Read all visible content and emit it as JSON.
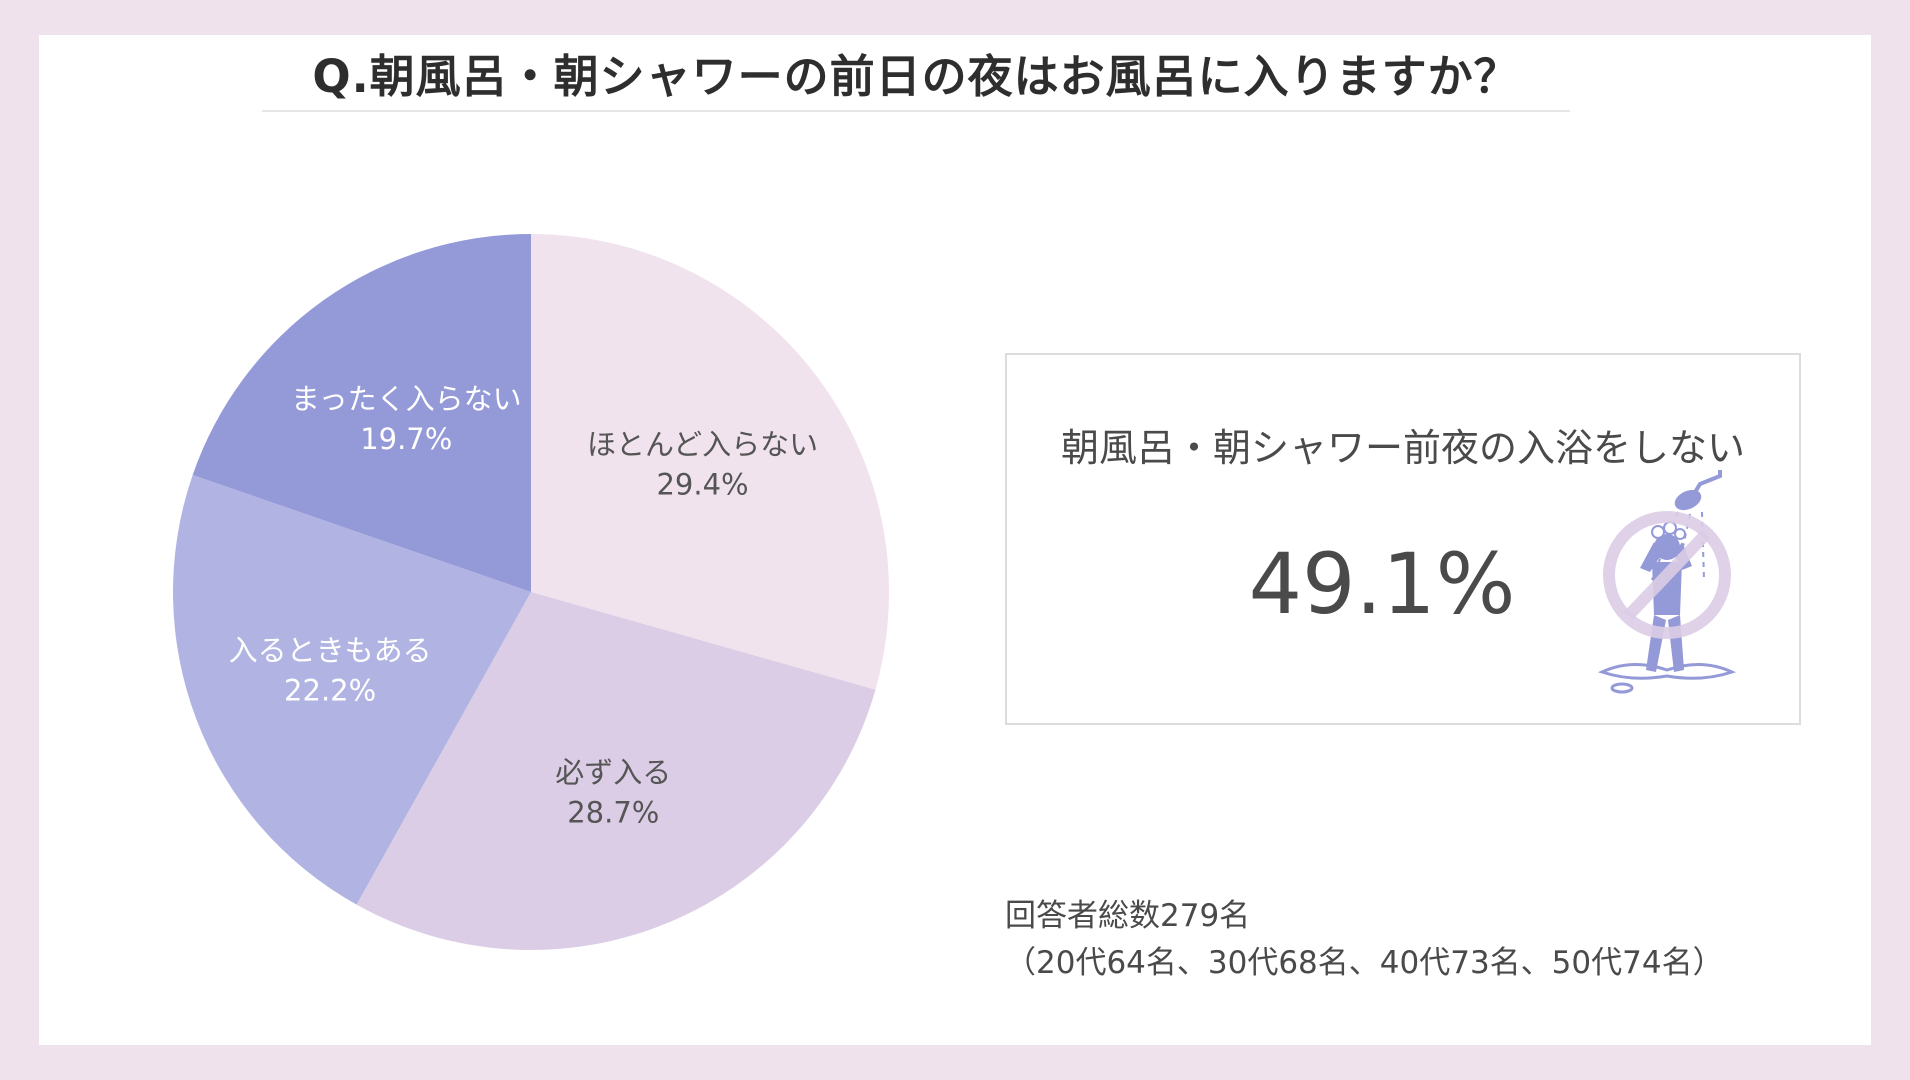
{
  "page": {
    "background": "#efe2ed",
    "card_background": "#ffffff"
  },
  "chart_data": {
    "type": "pie",
    "title": "Q.朝風呂・朝シャワーの前日の夜はお風呂に入りますか？",
    "slices": [
      {
        "label": "ほとんど入らない",
        "value": 29.4,
        "value_label": "29.4%",
        "color": "#f0e3ee",
        "text_color": "#555555"
      },
      {
        "label": "必ず入る",
        "value": 28.7,
        "value_label": "28.7%",
        "color": "#dccde6",
        "text_color": "#555555"
      },
      {
        "label": "入るときもある",
        "value": 22.2,
        "value_label": "22.2%",
        "color": "#b1b4e3",
        "text_color": "#ffffff"
      },
      {
        "label": "まったく入らない",
        "value": 19.7,
        "value_label": "19.7%",
        "color": "#9499d7",
        "text_color": "#ffffff"
      }
    ],
    "start": "12 o'clock",
    "direction": "clockwise",
    "legend": "none (labels on slices)"
  },
  "callout": {
    "label": "朝風呂・朝シャワー前夜の入浴をしない",
    "value": "49.1%",
    "icon": "no-shower-icon",
    "icon_color": "#9499d7",
    "prohibit_color": "#dccde6"
  },
  "footnote": {
    "line1": "回答者総数279名",
    "line2": "（20代64名、30代68名、40代73名、50代74名）"
  }
}
